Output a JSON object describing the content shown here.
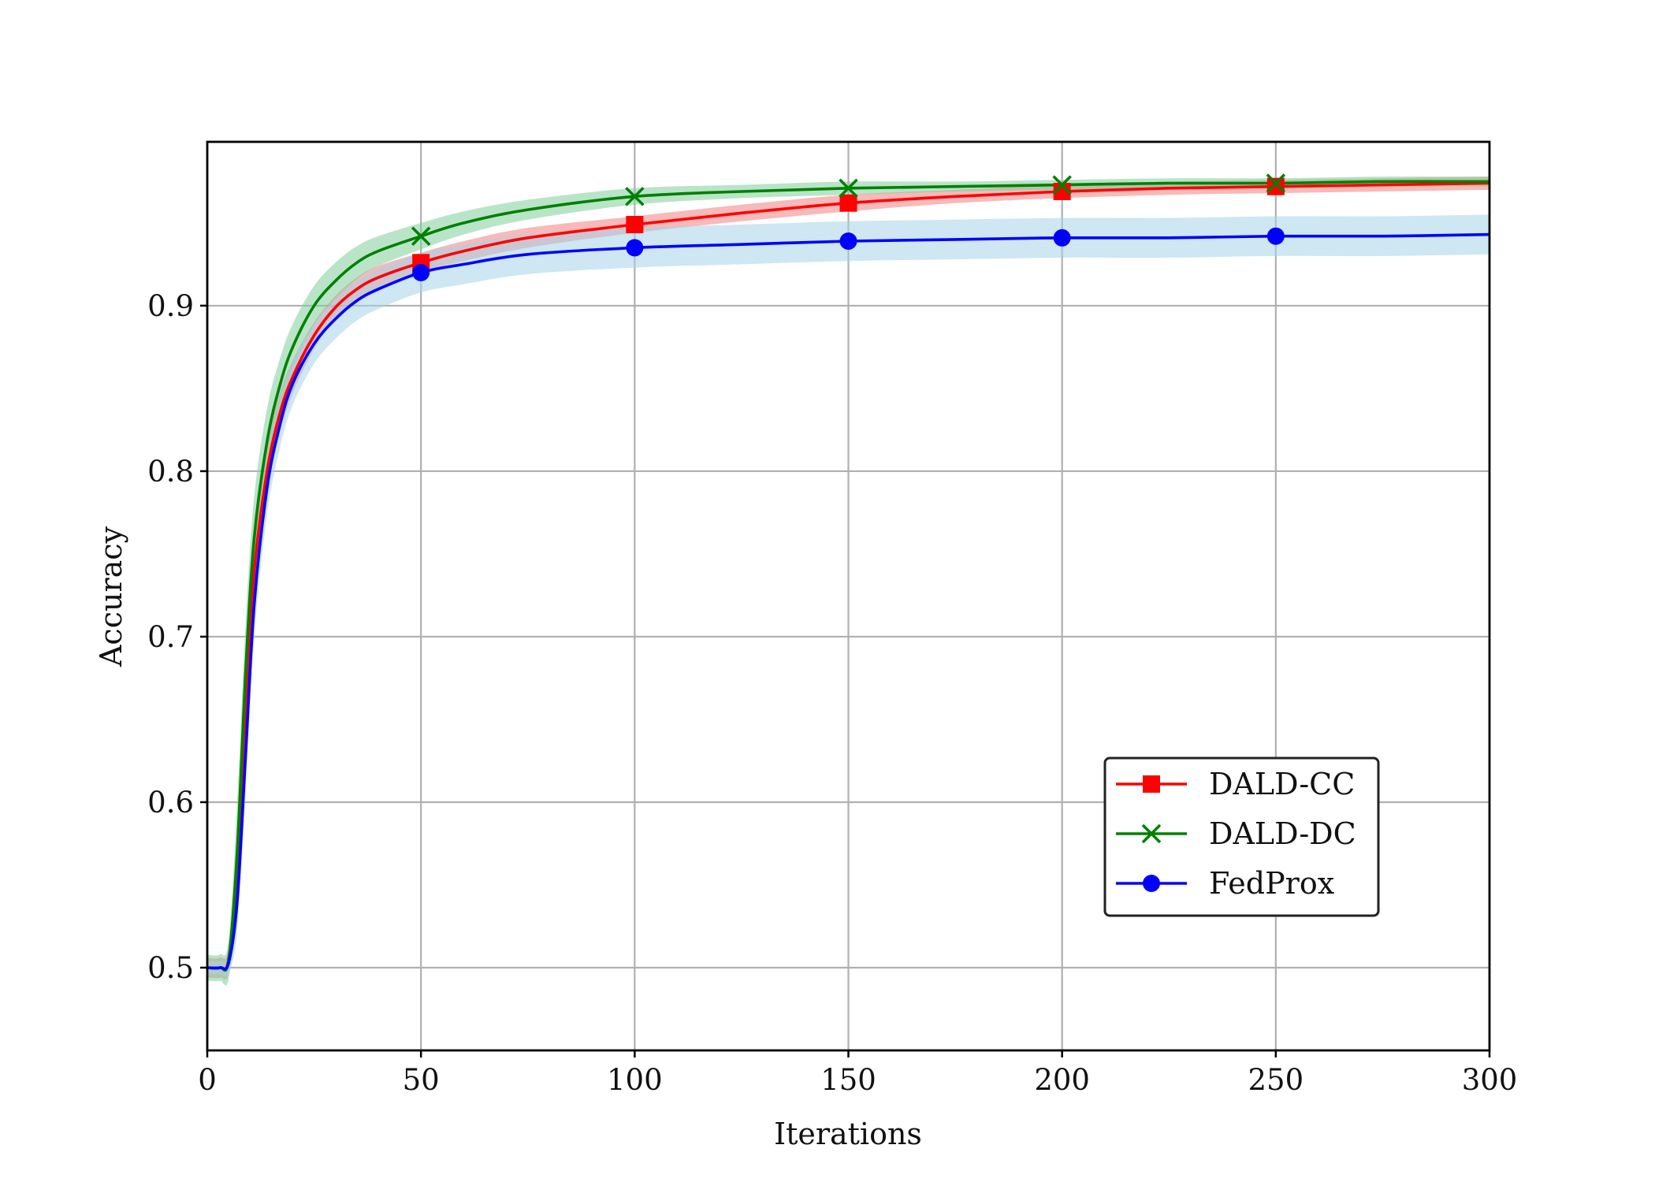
{
  "chart_data": {
    "type": "line",
    "title": "",
    "xlabel": "Iterations",
    "ylabel": "Accuracy",
    "xlim": [
      0,
      300
    ],
    "ylim": [
      0.45,
      0.999
    ],
    "xticks": [
      0,
      50,
      100,
      150,
      200,
      250,
      300
    ],
    "xtick_labels": [
      "0",
      "50",
      "100",
      "150",
      "200",
      "250",
      "300"
    ],
    "yticks": [
      0.5,
      0.6,
      0.7,
      0.8,
      0.9
    ],
    "ytick_labels": [
      "0.5",
      "0.6",
      "0.7",
      "0.8",
      "0.9"
    ],
    "grid": true,
    "legend_position": "lower-right",
    "series": [
      {
        "name": "DALD-CC",
        "color": "#ff0000",
        "band_color": "#f08080",
        "marker": "square",
        "x": [
          0,
          3,
          5,
          7,
          9,
          11,
          14,
          17,
          20,
          25,
          30,
          35,
          40,
          50,
          60,
          75,
          100,
          125,
          150,
          175,
          200,
          225,
          250,
          275,
          300
        ],
        "values": [
          0.5,
          0.5,
          0.505,
          0.56,
          0.66,
          0.74,
          0.8,
          0.835,
          0.857,
          0.882,
          0.899,
          0.91,
          0.917,
          0.926,
          0.933,
          0.941,
          0.949,
          0.956,
          0.962,
          0.966,
          0.969,
          0.971,
          0.972,
          0.973,
          0.974
        ],
        "band": [
          0.006,
          0.006,
          0.008,
          0.02,
          0.025,
          0.02,
          0.015,
          0.012,
          0.01,
          0.008,
          0.007,
          0.007,
          0.007,
          0.006,
          0.006,
          0.006,
          0.005,
          0.005,
          0.005,
          0.004,
          0.004,
          0.004,
          0.004,
          0.004,
          0.004
        ],
        "markers_x": [
          50,
          100,
          150,
          200,
          250
        ]
      },
      {
        "name": "DALD-DC",
        "color": "#008000",
        "band_color": "#7fce9a",
        "marker": "x",
        "x": [
          0,
          3,
          5,
          7,
          9,
          11,
          14,
          17,
          20,
          25,
          30,
          35,
          40,
          50,
          60,
          75,
          100,
          125,
          150,
          175,
          200,
          225,
          250,
          275,
          300
        ],
        "values": [
          0.5,
          0.5,
          0.505,
          0.57,
          0.68,
          0.76,
          0.818,
          0.852,
          0.875,
          0.9,
          0.915,
          0.926,
          0.933,
          0.942,
          0.95,
          0.958,
          0.966,
          0.969,
          0.971,
          0.972,
          0.973,
          0.974,
          0.974,
          0.975,
          0.975
        ],
        "band": [
          0.008,
          0.008,
          0.012,
          0.03,
          0.03,
          0.025,
          0.02,
          0.016,
          0.014,
          0.012,
          0.011,
          0.01,
          0.009,
          0.008,
          0.007,
          0.006,
          0.005,
          0.004,
          0.004,
          0.003,
          0.003,
          0.003,
          0.003,
          0.003,
          0.003
        ],
        "markers_x": [
          50,
          100,
          150,
          200,
          250
        ]
      },
      {
        "name": "FedProx",
        "color": "#0000ff",
        "band_color": "#a6d3e8",
        "marker": "circle",
        "x": [
          0,
          3,
          5,
          7,
          9,
          11,
          14,
          17,
          20,
          25,
          30,
          35,
          40,
          50,
          60,
          75,
          100,
          125,
          150,
          175,
          200,
          225,
          250,
          275,
          300
        ],
        "values": [
          0.5,
          0.5,
          0.503,
          0.54,
          0.63,
          0.72,
          0.79,
          0.828,
          0.853,
          0.877,
          0.892,
          0.903,
          0.91,
          0.92,
          0.925,
          0.931,
          0.935,
          0.937,
          0.939,
          0.94,
          0.941,
          0.941,
          0.942,
          0.942,
          0.943
        ],
        "band": [
          0.004,
          0.004,
          0.006,
          0.018,
          0.022,
          0.02,
          0.016,
          0.014,
          0.013,
          0.012,
          0.012,
          0.012,
          0.012,
          0.012,
          0.012,
          0.012,
          0.012,
          0.012,
          0.012,
          0.012,
          0.012,
          0.012,
          0.012,
          0.012,
          0.012
        ],
        "markers_x": [
          50,
          100,
          150,
          200,
          250
        ]
      }
    ]
  }
}
